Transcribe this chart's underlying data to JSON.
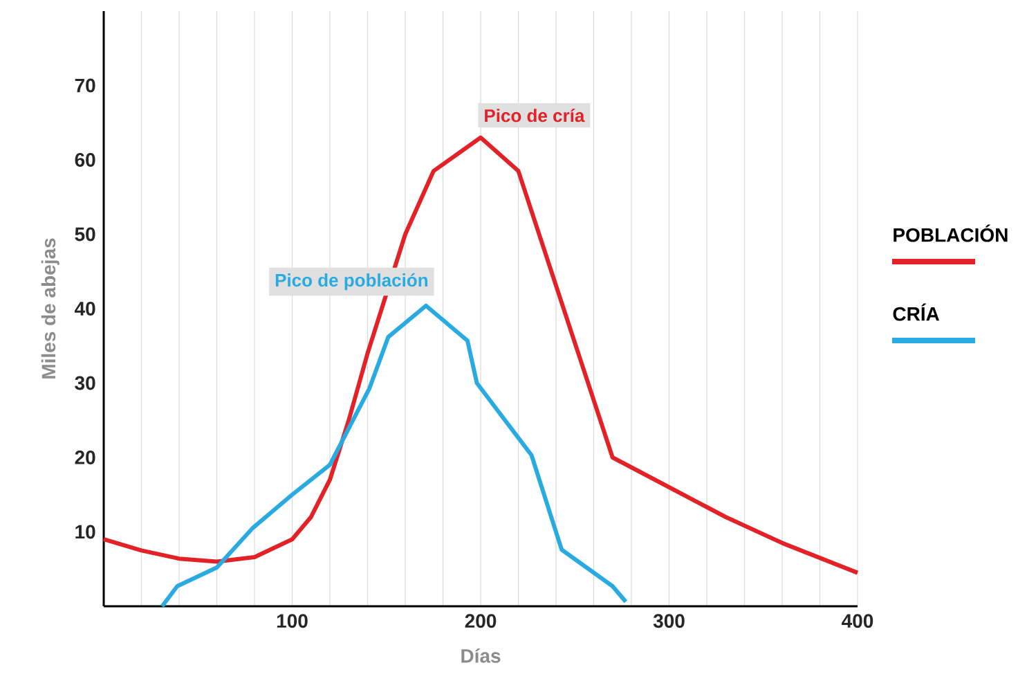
{
  "chart_data": {
    "type": "line",
    "xlabel": "Días",
    "ylabel": "Miles de abejas",
    "xlim": [
      0,
      400
    ],
    "ylim": [
      0,
      80
    ],
    "xticks": [
      {
        "value": 20,
        "label": null
      },
      {
        "value": 40,
        "label": null
      },
      {
        "value": 60,
        "label": null
      },
      {
        "value": 80,
        "label": null
      },
      100,
      {
        "value": 120,
        "label": null
      },
      {
        "value": 140,
        "label": null
      },
      {
        "value": 160,
        "label": null
      },
      {
        "value": 180,
        "label": null
      },
      200,
      {
        "value": 220,
        "label": null
      },
      {
        "value": 240,
        "label": null
      },
      {
        "value": 260,
        "label": null
      },
      {
        "value": 280,
        "label": null
      },
      300,
      {
        "value": 320,
        "label": null
      },
      {
        "value": 340,
        "label": null
      },
      {
        "value": 360,
        "label": null
      },
      {
        "value": 380,
        "label": null
      },
      400
    ],
    "yticks": [
      10,
      20,
      30,
      40,
      50,
      60,
      70
    ],
    "grid": "x",
    "legend": "right",
    "line_style": "solid",
    "marker": "none",
    "series": [
      {
        "name": "POBLACIÓN",
        "color": "#e32228",
        "x": [
          0,
          20,
          40,
          60,
          80,
          100,
          110,
          120,
          130,
          140,
          150,
          160,
          175,
          200,
          220,
          270,
          300,
          330,
          360,
          400
        ],
        "values": [
          9,
          7.5,
          6.4,
          6,
          6.6,
          9,
          12,
          17,
          25,
          34,
          42,
          50,
          58.5,
          63,
          58.5,
          20,
          16,
          12,
          8.5,
          4.5
        ]
      },
      {
        "name": "CRÍA",
        "color": "#29abe2",
        "x": [
          31,
          39,
          60,
          79,
          100,
          120,
          141,
          151,
          171,
          193,
          198,
          227,
          243,
          270,
          277
        ],
        "values": [
          0,
          2.7,
          5.2,
          10.5,
          15,
          19,
          29.3,
          36.2,
          40.4,
          35.7,
          30,
          20.3,
          7.6,
          2.7,
          0.6
        ]
      }
    ],
    "annotations": [
      {
        "text": "Pico de cría",
        "x": 200,
        "y": 63
      },
      {
        "text": "Pico de población",
        "x": 171,
        "y": 40.4
      }
    ]
  }
}
